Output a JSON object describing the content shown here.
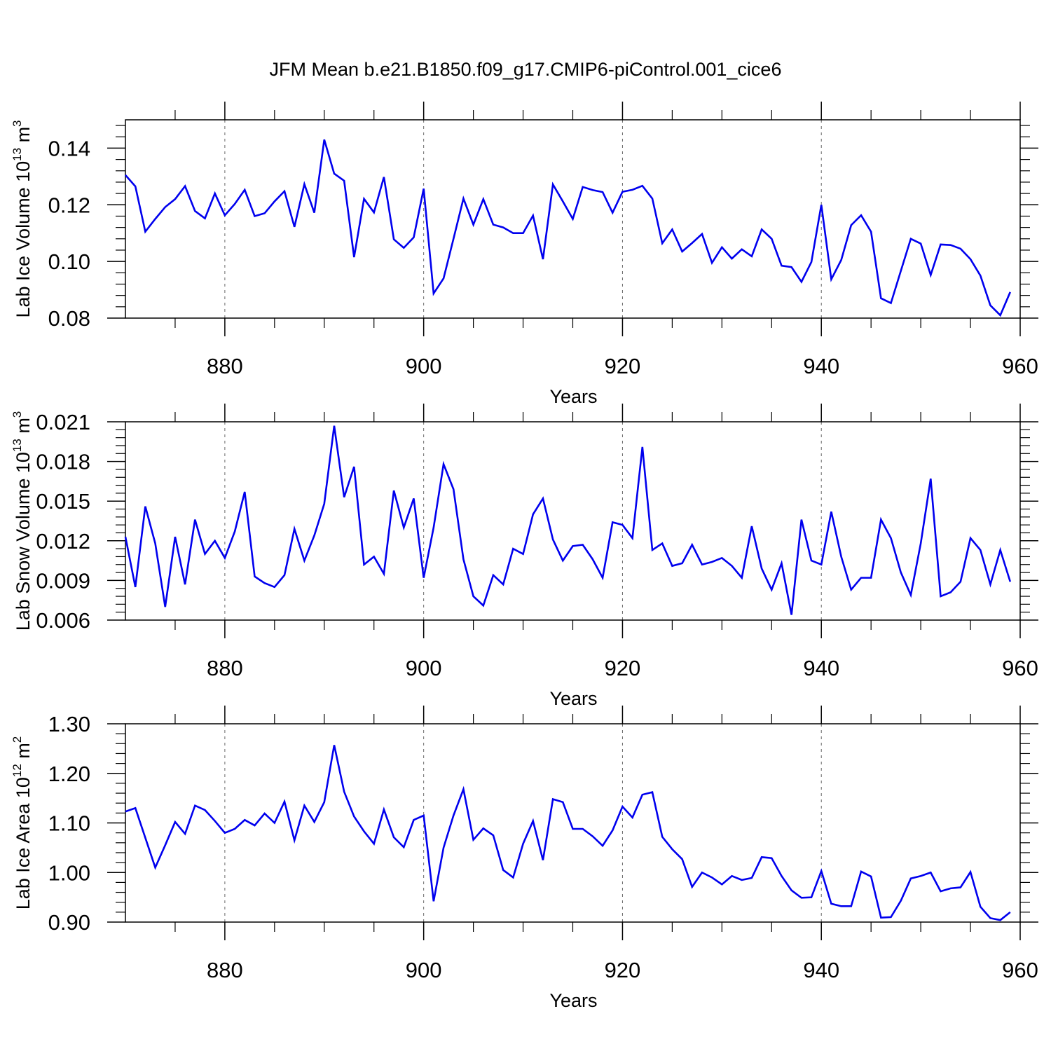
{
  "title": "JFM Mean b.e21.B1850.f09_g17.CMIP6-piControl.001_cice6",
  "line_color": "#0000ee",
  "chart_data": [
    {
      "type": "line",
      "ylabel": {
        "prefix": "Lab Ice Volume 10",
        "exp": "13",
        "mid": " m",
        "unit_exp": "3"
      },
      "xlabel": "Years",
      "xlim": [
        870,
        960
      ],
      "ylim": [
        0.08,
        0.15
      ],
      "xticks": [
        880,
        900,
        920,
        940,
        960
      ],
      "xtick_labels": [
        "880",
        "900",
        "920",
        "940",
        "960"
      ],
      "yticks": [
        0.08,
        0.1,
        0.12,
        0.14
      ],
      "ytick_labels": [
        "0.08",
        "0.10",
        "0.12",
        "0.14"
      ],
      "x_start": 870,
      "values": [
        0.1305,
        0.1265,
        0.1105,
        0.115,
        0.1192,
        0.122,
        0.1266,
        0.1178,
        0.1152,
        0.124,
        0.1163,
        0.1203,
        0.1253,
        0.116,
        0.117,
        0.1212,
        0.1248,
        0.1122,
        0.1273,
        0.1172,
        0.143,
        0.131,
        0.1285,
        0.1015,
        0.1221,
        0.1173,
        0.1298,
        0.1078,
        0.1048,
        0.1085,
        0.1257,
        0.0887,
        0.094,
        0.108,
        0.1222,
        0.113,
        0.122,
        0.113,
        0.112,
        0.11,
        0.11,
        0.1162,
        0.1008,
        0.1272,
        0.1212,
        0.115,
        0.1263,
        0.1252,
        0.1245,
        0.1172,
        0.1246,
        0.1253,
        0.1267,
        0.1222,
        0.1064,
        0.1113,
        0.1035,
        0.1065,
        0.1097,
        0.0995,
        0.105,
        0.101,
        0.1043,
        0.1018,
        0.1113,
        0.108,
        0.0985,
        0.098,
        0.0928,
        0.0998,
        0.12,
        0.0937,
        0.1005,
        0.1128,
        0.1163,
        0.1105,
        0.087,
        0.0853,
        0.0967,
        0.108,
        0.1063,
        0.0952,
        0.106,
        0.1058,
        0.1045,
        0.1008,
        0.095,
        0.0845,
        0.081,
        0.0892
      ]
    },
    {
      "type": "line",
      "ylabel": {
        "prefix": "Lab Snow Volume 10",
        "exp": "13",
        "mid": " m",
        "unit_exp": "3"
      },
      "xlabel": "Years",
      "xlim": [
        870,
        960
      ],
      "ylim": [
        0.006,
        0.021
      ],
      "xticks": [
        880,
        900,
        920,
        940,
        960
      ],
      "xtick_labels": [
        "880",
        "900",
        "920",
        "940",
        "960"
      ],
      "yticks": [
        0.006,
        0.009,
        0.012,
        0.015,
        0.018,
        0.021
      ],
      "ytick_labels": [
        "0.006",
        "0.009",
        "0.012",
        "0.015",
        "0.018",
        "0.021"
      ],
      "x_start": 870,
      "values": [
        0.0123,
        0.0085,
        0.0146,
        0.0118,
        0.007,
        0.0123,
        0.0087,
        0.0136,
        0.011,
        0.012,
        0.0107,
        0.0127,
        0.0157,
        0.0093,
        0.0088,
        0.0085,
        0.0094,
        0.0129,
        0.0105,
        0.0124,
        0.0148,
        0.0207,
        0.0153,
        0.0176,
        0.0102,
        0.0108,
        0.0095,
        0.0158,
        0.013,
        0.0152,
        0.0092,
        0.013,
        0.0178,
        0.0159,
        0.0106,
        0.0078,
        0.0071,
        0.0094,
        0.0087,
        0.0114,
        0.011,
        0.014,
        0.0152,
        0.0121,
        0.0105,
        0.0116,
        0.0117,
        0.0106,
        0.0092,
        0.0134,
        0.0132,
        0.0122,
        0.0191,
        0.0113,
        0.0118,
        0.0101,
        0.0103,
        0.0117,
        0.0102,
        0.0104,
        0.0107,
        0.0101,
        0.0092,
        0.0131,
        0.0099,
        0.0083,
        0.0103,
        0.0064,
        0.0136,
        0.0105,
        0.0102,
        0.0142,
        0.0108,
        0.0083,
        0.0092,
        0.0092,
        0.0136,
        0.0122,
        0.0096,
        0.0079,
        0.0118,
        0.0167,
        0.0078,
        0.0081,
        0.0089,
        0.0122,
        0.0113,
        0.0087,
        0.0113,
        0.0089
      ]
    },
    {
      "type": "line",
      "ylabel": {
        "prefix": "Lab Ice Area 10",
        "exp": "12",
        "mid": " m",
        "unit_exp": "2"
      },
      "xlabel": "Years",
      "xlim": [
        870,
        960
      ],
      "ylim": [
        0.9,
        1.3
      ],
      "xticks": [
        880,
        900,
        920,
        940,
        960
      ],
      "xtick_labels": [
        "880",
        "900",
        "920",
        "940",
        "960"
      ],
      "yticks": [
        0.9,
        1.0,
        1.1,
        1.2,
        1.3
      ],
      "ytick_labels": [
        "0.90",
        "1.00",
        "1.10",
        "1.20",
        "1.30"
      ],
      "x_start": 870,
      "values": [
        1.123,
        1.13,
        1.07,
        1.01,
        1.055,
        1.102,
        1.078,
        1.135,
        1.126,
        1.104,
        1.08,
        1.088,
        1.106,
        1.095,
        1.119,
        1.1,
        1.143,
        1.065,
        1.135,
        1.102,
        1.142,
        1.257,
        1.163,
        1.113,
        1.083,
        1.058,
        1.127,
        1.071,
        1.051,
        1.106,
        1.115,
        0.942,
        1.05,
        1.115,
        1.168,
        1.066,
        1.089,
        1.075,
        1.005,
        0.99,
        1.058,
        1.104,
        1.025,
        1.148,
        1.142,
        1.088,
        1.088,
        1.073,
        1.054,
        1.085,
        1.133,
        1.111,
        1.157,
        1.162,
        1.072,
        1.047,
        1.027,
        0.971,
        1.0,
        0.99,
        0.976,
        0.993,
        0.985,
        0.989,
        1.031,
        1.029,
        0.993,
        0.964,
        0.949,
        0.95,
        1.003,
        0.937,
        0.932,
        0.932,
        1.002,
        0.992,
        0.909,
        0.91,
        0.943,
        0.988,
        0.993,
        1.0,
        0.962,
        0.968,
        0.97,
        1.001,
        0.931,
        0.908,
        0.904,
        0.92
      ]
    }
  ]
}
